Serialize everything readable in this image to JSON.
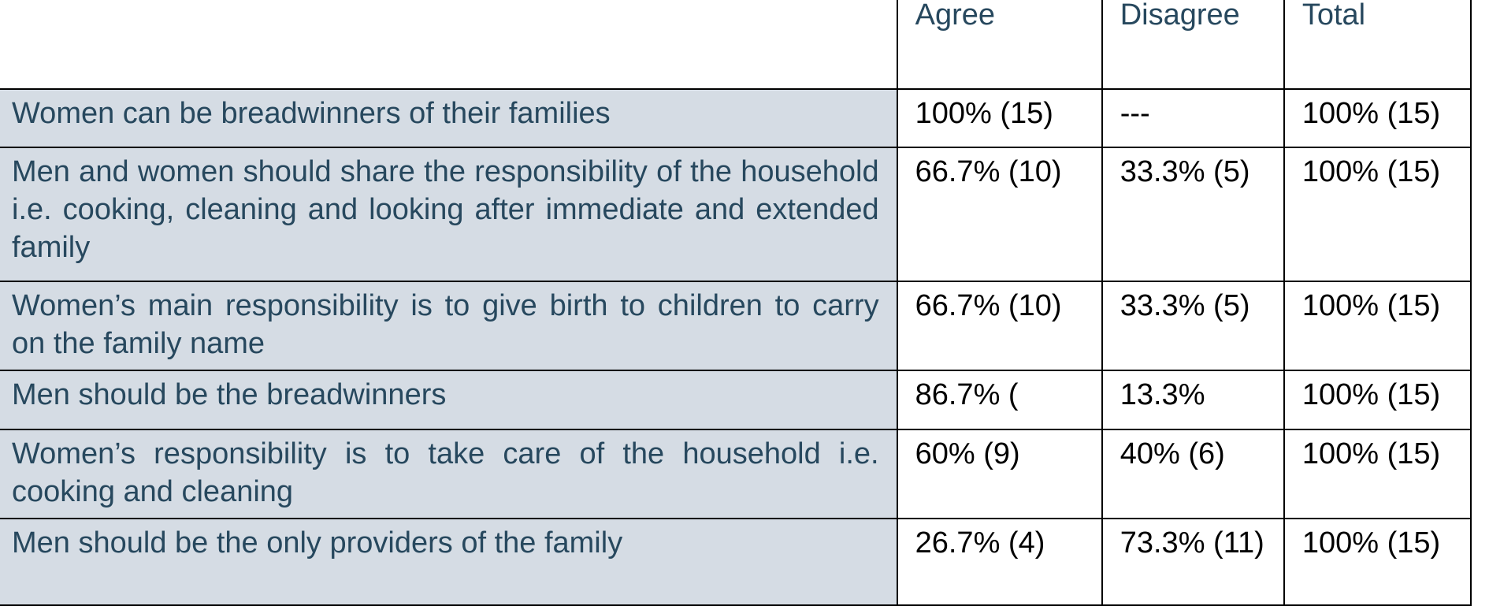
{
  "table": {
    "columns": [
      "",
      "Agree",
      "Disagree",
      "Total"
    ],
    "rows": [
      {
        "statement": "Women can be breadwinners of their families",
        "agree": "100% (15)",
        "disagree": "---",
        "total": "100% (15)"
      },
      {
        "statement": "Men and women should share the responsibility of the household i.e. cooking, cleaning and looking after immediate and extended family",
        "agree": "66.7% (10)",
        "disagree": "33.3% (5)",
        "total": "100% (15)"
      },
      {
        "statement": "Women’s main responsibility is to give birth to children to carry on the family name",
        "agree": "66.7% (10)",
        "disagree": "33.3% (5)",
        "total": "100% (15)"
      },
      {
        "statement": "Men should be the breadwinners",
        "agree": "86.7% (",
        "disagree": "13.3%",
        "total": "100% (15)"
      },
      {
        "statement": "Women’s responsibility is to take care of the household i.e. cooking and cleaning",
        "agree": "60% (9)",
        "disagree": "40% (6)",
        "total": "100% (15)"
      },
      {
        "statement": "Men should be the only providers of the family",
        "agree": "26.7% (4)",
        "disagree": "73.3% (11)",
        "total": "100% (15)"
      }
    ]
  },
  "colors": {
    "header_text": "#27485e",
    "statement_bg": "#d5dce4",
    "statement_text": "#27485e",
    "value_text": "#000000",
    "border": "#000000"
  }
}
